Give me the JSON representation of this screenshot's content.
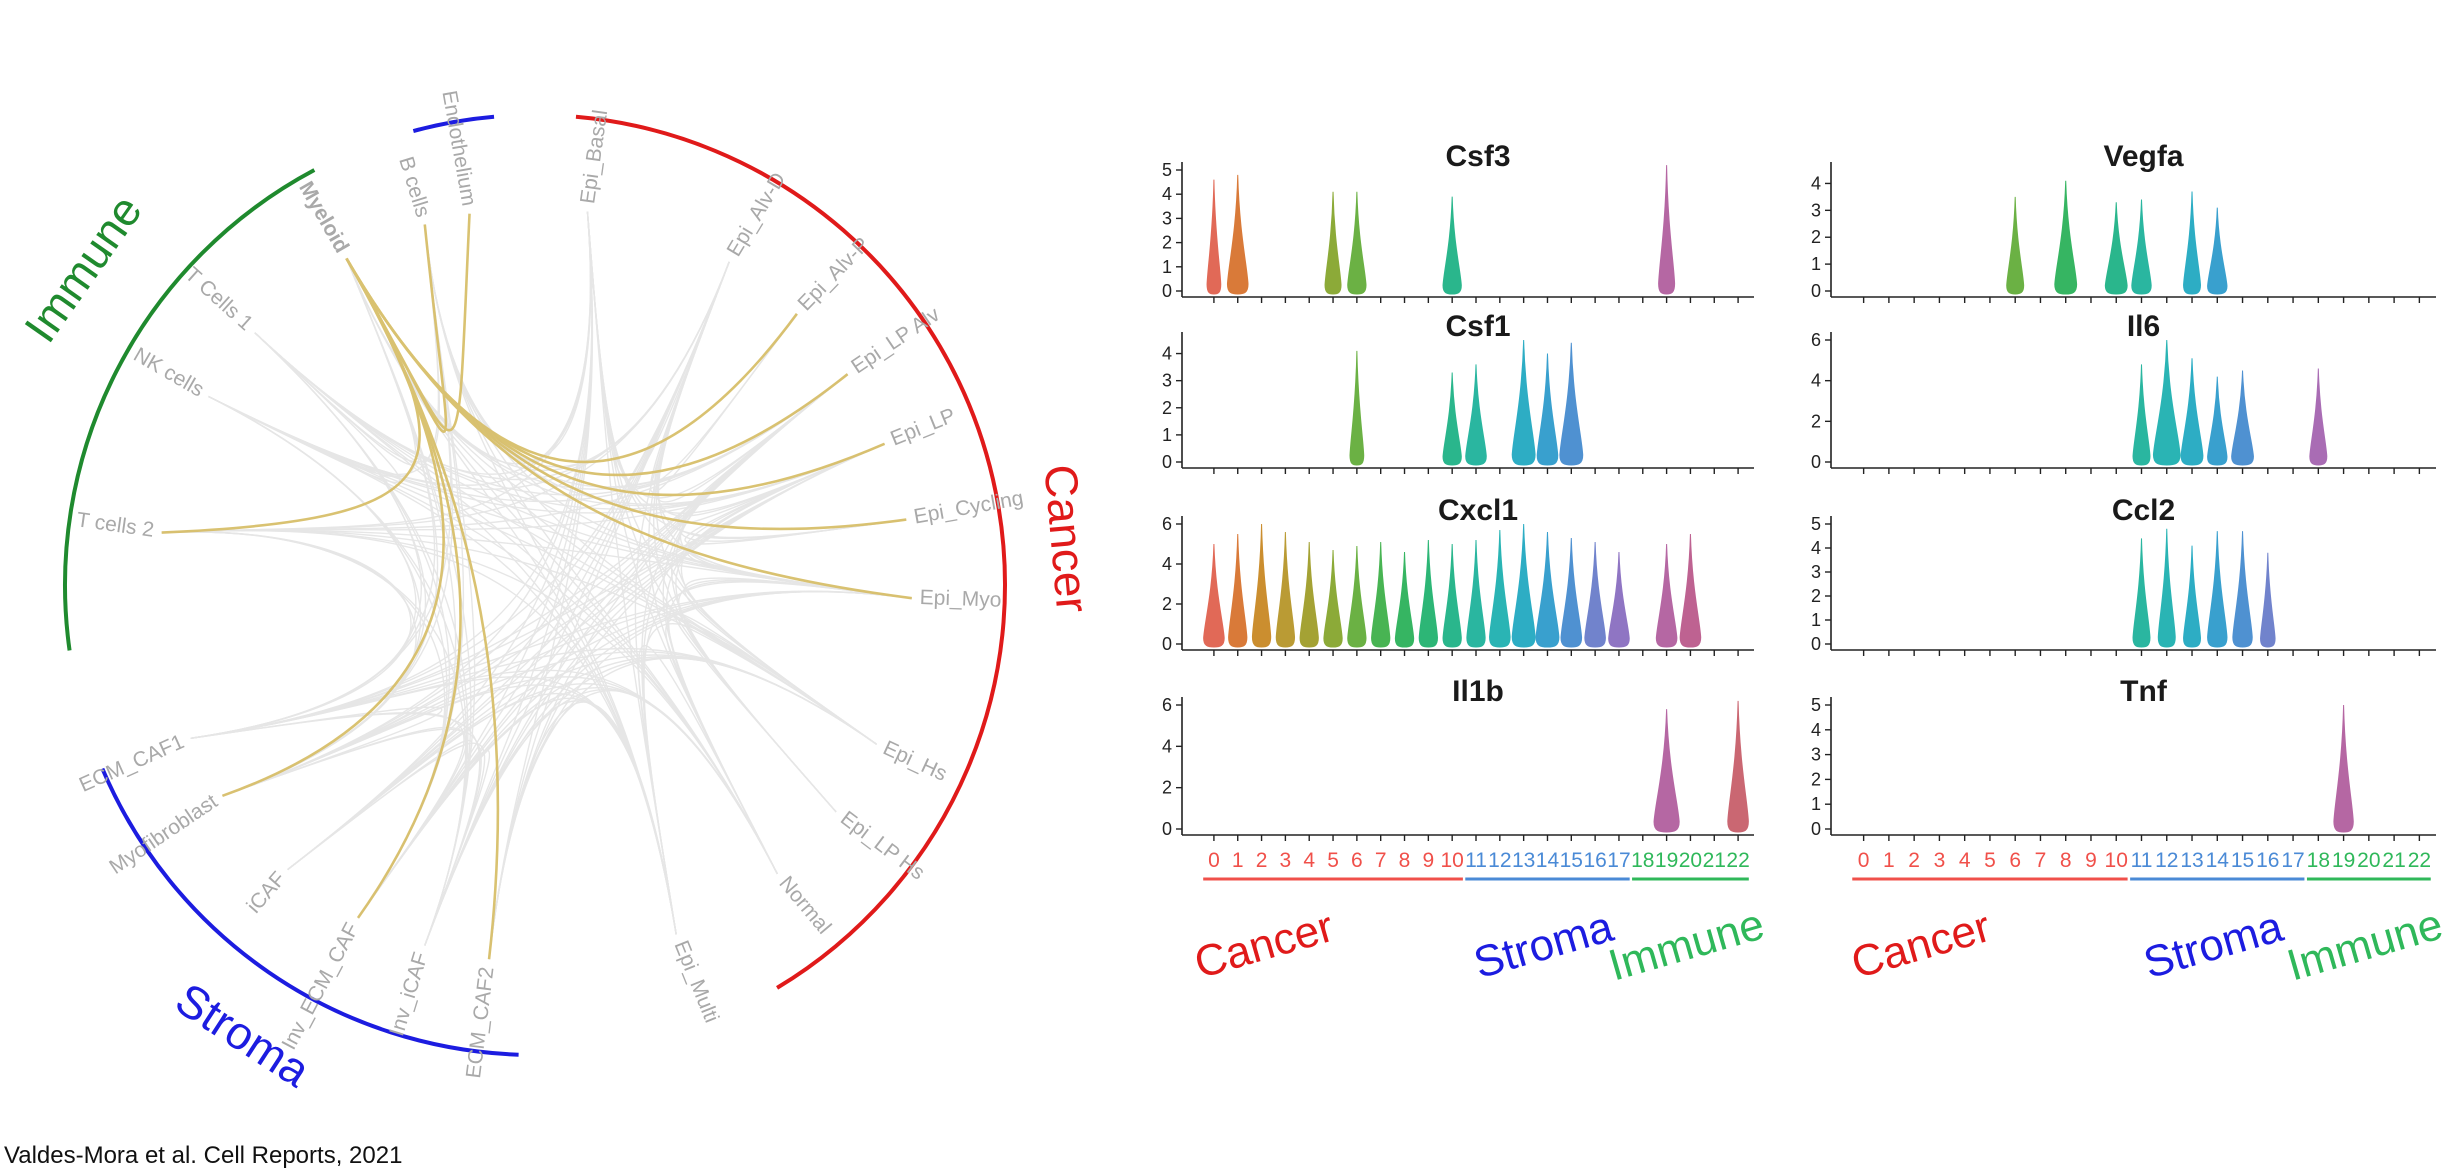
{
  "citation": "Valdes-Mora et al. Cell Reports, 2021",
  "colors": {
    "immune": "#1f8a2e",
    "cancer": "#e01a1a",
    "stroma": "#1c1ce0",
    "endothelium": "#1c1ce0",
    "cancer_axis": "#f0504a",
    "stroma_axis": "#4a8ad6",
    "immune_axis": "#2fb85a",
    "immune_label": "#2fb85a",
    "edge_highlight": "#d8bf6a",
    "edge_faint": "#e4e4e4"
  },
  "circos": {
    "groups": [
      {
        "name": "Immune",
        "color_key": "immune"
      },
      {
        "name": "Cancer",
        "color_key": "cancer"
      },
      {
        "name": "Stroma",
        "color_key": "stroma"
      }
    ],
    "nodes": [
      "Endothelium",
      "Epi_Basal",
      "Epi_Alv-D",
      "Epi_Alv-P",
      "Epi_LP Alv",
      "Epi_LP",
      "Epi_Cycling",
      "Epi_Myo",
      "Epi_Hs",
      "Epi_LP Hs",
      "Normal",
      "Epi_Multi",
      "ECM_CAF2",
      "Inv_iCAF",
      "Inv_ECM_CAF",
      "iCAF",
      "Myofibroblast",
      "ECM_CAF1",
      "T cells 2",
      "NK cells",
      "T Cells 1",
      "Myeloid",
      "B cells"
    ],
    "highlighted_source": "Myeloid",
    "highlighted_targets": [
      "B cells",
      "Endothelium",
      "Epi_Alv-P",
      "Epi_LP Alv",
      "Epi_LP",
      "Epi_Cycling",
      "Epi_Myo",
      "T cells 2",
      "Myofibroblast",
      "Inv_ECM_CAF",
      "ECM_CAF2"
    ]
  },
  "chart_data": {
    "type": "violin",
    "clusters": [
      "0",
      "1",
      "2",
      "3",
      "4",
      "5",
      "6",
      "7",
      "8",
      "9",
      "10",
      "11",
      "12",
      "13",
      "14",
      "15",
      "16",
      "17",
      "18",
      "19",
      "20",
      "21",
      "22"
    ],
    "cluster_groups": [
      {
        "name": "Cancer",
        "clusters": [
          0,
          1,
          2,
          3,
          4,
          5,
          6,
          7,
          8,
          9,
          10
        ],
        "color_key": "cancer"
      },
      {
        "name": "Stroma",
        "clusters": [
          11,
          12,
          13,
          14,
          15,
          16,
          17
        ],
        "color_key": "stroma"
      },
      {
        "name": "Immune",
        "clusters": [
          18,
          19,
          20,
          21,
          22
        ],
        "color_key": "immune"
      }
    ],
    "cluster_colors": [
      "#e0614f",
      "#d8732f",
      "#c98824",
      "#b7962a",
      "#a09e2a",
      "#86a62e",
      "#64ad3a",
      "#3fb04a",
      "#2cb25a",
      "#22b36f",
      "#1fb386",
      "#1fb39b",
      "#1fb1b0",
      "#22a9c1",
      "#2f9bcc",
      "#468ccf",
      "#6a7dca",
      "#8a6ec0",
      "#a565b0",
      "#b25f9f",
      "#bb5a8c",
      "#c45a7b",
      "#c85f6b"
    ],
    "panels": [
      {
        "gene": "Csf3",
        "ylim": [
          0,
          5
        ],
        "yticks": [
          0,
          1,
          2,
          3,
          4,
          5
        ],
        "violins": [
          {
            "c": 0,
            "max": 4.6,
            "w": 0.6
          },
          {
            "c": 1,
            "max": 4.8,
            "w": 0.9
          },
          {
            "c": 5,
            "max": 4.1,
            "w": 0.7
          },
          {
            "c": 6,
            "max": 4.1,
            "w": 0.8
          },
          {
            "c": 10,
            "max": 3.9,
            "w": 0.8
          },
          {
            "c": 19,
            "max": 5.2,
            "w": 0.7
          }
        ]
      },
      {
        "gene": "Vegfa",
        "ylim": [
          0,
          4.5
        ],
        "yticks": [
          0,
          1,
          2,
          3,
          4
        ],
        "violins": [
          {
            "c": 6,
            "max": 3.5,
            "w": 0.7
          },
          {
            "c": 8,
            "max": 4.1,
            "w": 0.9
          },
          {
            "c": 10,
            "max": 3.3,
            "w": 0.9
          },
          {
            "c": 11,
            "max": 3.4,
            "w": 0.8
          },
          {
            "c": 13,
            "max": 3.7,
            "w": 0.7
          },
          {
            "c": 14,
            "max": 3.1,
            "w": 0.8
          }
        ]
      },
      {
        "gene": "Csf1",
        "ylim": [
          0,
          4.5
        ],
        "yticks": [
          0,
          1,
          2,
          3,
          4
        ],
        "violins": [
          {
            "c": 6,
            "max": 4.1,
            "w": 0.6
          },
          {
            "c": 10,
            "max": 3.3,
            "w": 0.8
          },
          {
            "c": 11,
            "max": 3.6,
            "w": 0.9
          },
          {
            "c": 13,
            "max": 4.5,
            "w": 1.0
          },
          {
            "c": 14,
            "max": 4.0,
            "w": 0.9
          },
          {
            "c": 15,
            "max": 4.4,
            "w": 1.0
          }
        ]
      },
      {
        "gene": "Il6",
        "ylim": [
          0,
          6
        ],
        "yticks": [
          0,
          2,
          4,
          6
        ],
        "violins": [
          {
            "c": 11,
            "max": 4.8,
            "w": 0.7
          },
          {
            "c": 12,
            "max": 6.0,
            "w": 1.1
          },
          {
            "c": 13,
            "max": 5.1,
            "w": 0.9
          },
          {
            "c": 14,
            "max": 4.2,
            "w": 0.8
          },
          {
            "c": 15,
            "max": 4.5,
            "w": 0.9
          },
          {
            "c": 18,
            "max": 4.6,
            "w": 0.7
          }
        ]
      },
      {
        "gene": "Cxcl1",
        "ylim": [
          0,
          6
        ],
        "yticks": [
          0,
          2,
          4,
          6
        ],
        "violins": [
          {
            "c": 0,
            "max": 5.0,
            "w": 0.9
          },
          {
            "c": 1,
            "max": 5.5,
            "w": 0.8
          },
          {
            "c": 2,
            "max": 6.0,
            "w": 0.8
          },
          {
            "c": 3,
            "max": 5.6,
            "w": 0.8
          },
          {
            "c": 4,
            "max": 5.1,
            "w": 0.8
          },
          {
            "c": 5,
            "max": 4.7,
            "w": 0.8
          },
          {
            "c": 6,
            "max": 4.9,
            "w": 0.8
          },
          {
            "c": 7,
            "max": 5.1,
            "w": 0.8
          },
          {
            "c": 8,
            "max": 4.6,
            "w": 0.8
          },
          {
            "c": 9,
            "max": 5.2,
            "w": 0.8
          },
          {
            "c": 10,
            "max": 5.0,
            "w": 0.8
          },
          {
            "c": 11,
            "max": 5.2,
            "w": 0.8
          },
          {
            "c": 12,
            "max": 5.7,
            "w": 0.9
          },
          {
            "c": 13,
            "max": 6.0,
            "w": 1.0
          },
          {
            "c": 14,
            "max": 5.6,
            "w": 1.0
          },
          {
            "c": 15,
            "max": 5.3,
            "w": 0.9
          },
          {
            "c": 16,
            "max": 5.1,
            "w": 0.9
          },
          {
            "c": 17,
            "max": 4.6,
            "w": 0.9
          },
          {
            "c": 19,
            "max": 5.0,
            "w": 0.9
          },
          {
            "c": 20,
            "max": 5.5,
            "w": 0.9
          }
        ]
      },
      {
        "gene": "Ccl2",
        "ylim": [
          0,
          5
        ],
        "yticks": [
          0,
          1,
          2,
          3,
          4,
          5
        ],
        "violins": [
          {
            "c": 11,
            "max": 4.4,
            "w": 0.7
          },
          {
            "c": 12,
            "max": 4.8,
            "w": 0.7
          },
          {
            "c": 13,
            "max": 4.1,
            "w": 0.7
          },
          {
            "c": 14,
            "max": 4.7,
            "w": 0.8
          },
          {
            "c": 15,
            "max": 4.7,
            "w": 0.8
          },
          {
            "c": 16,
            "max": 3.8,
            "w": 0.6
          }
        ]
      },
      {
        "gene": "Il1b",
        "ylim": [
          0,
          6
        ],
        "yticks": [
          0,
          2,
          4,
          6
        ],
        "violins": [
          {
            "c": 19,
            "max": 5.8,
            "w": 1.1
          },
          {
            "c": 22,
            "max": 6.2,
            "w": 0.9
          }
        ]
      },
      {
        "gene": "Tnf",
        "ylim": [
          0,
          5
        ],
        "yticks": [
          0,
          1,
          2,
          3,
          4,
          5
        ],
        "violins": [
          {
            "c": 19,
            "max": 5.0,
            "w": 0.8
          }
        ]
      }
    ]
  }
}
